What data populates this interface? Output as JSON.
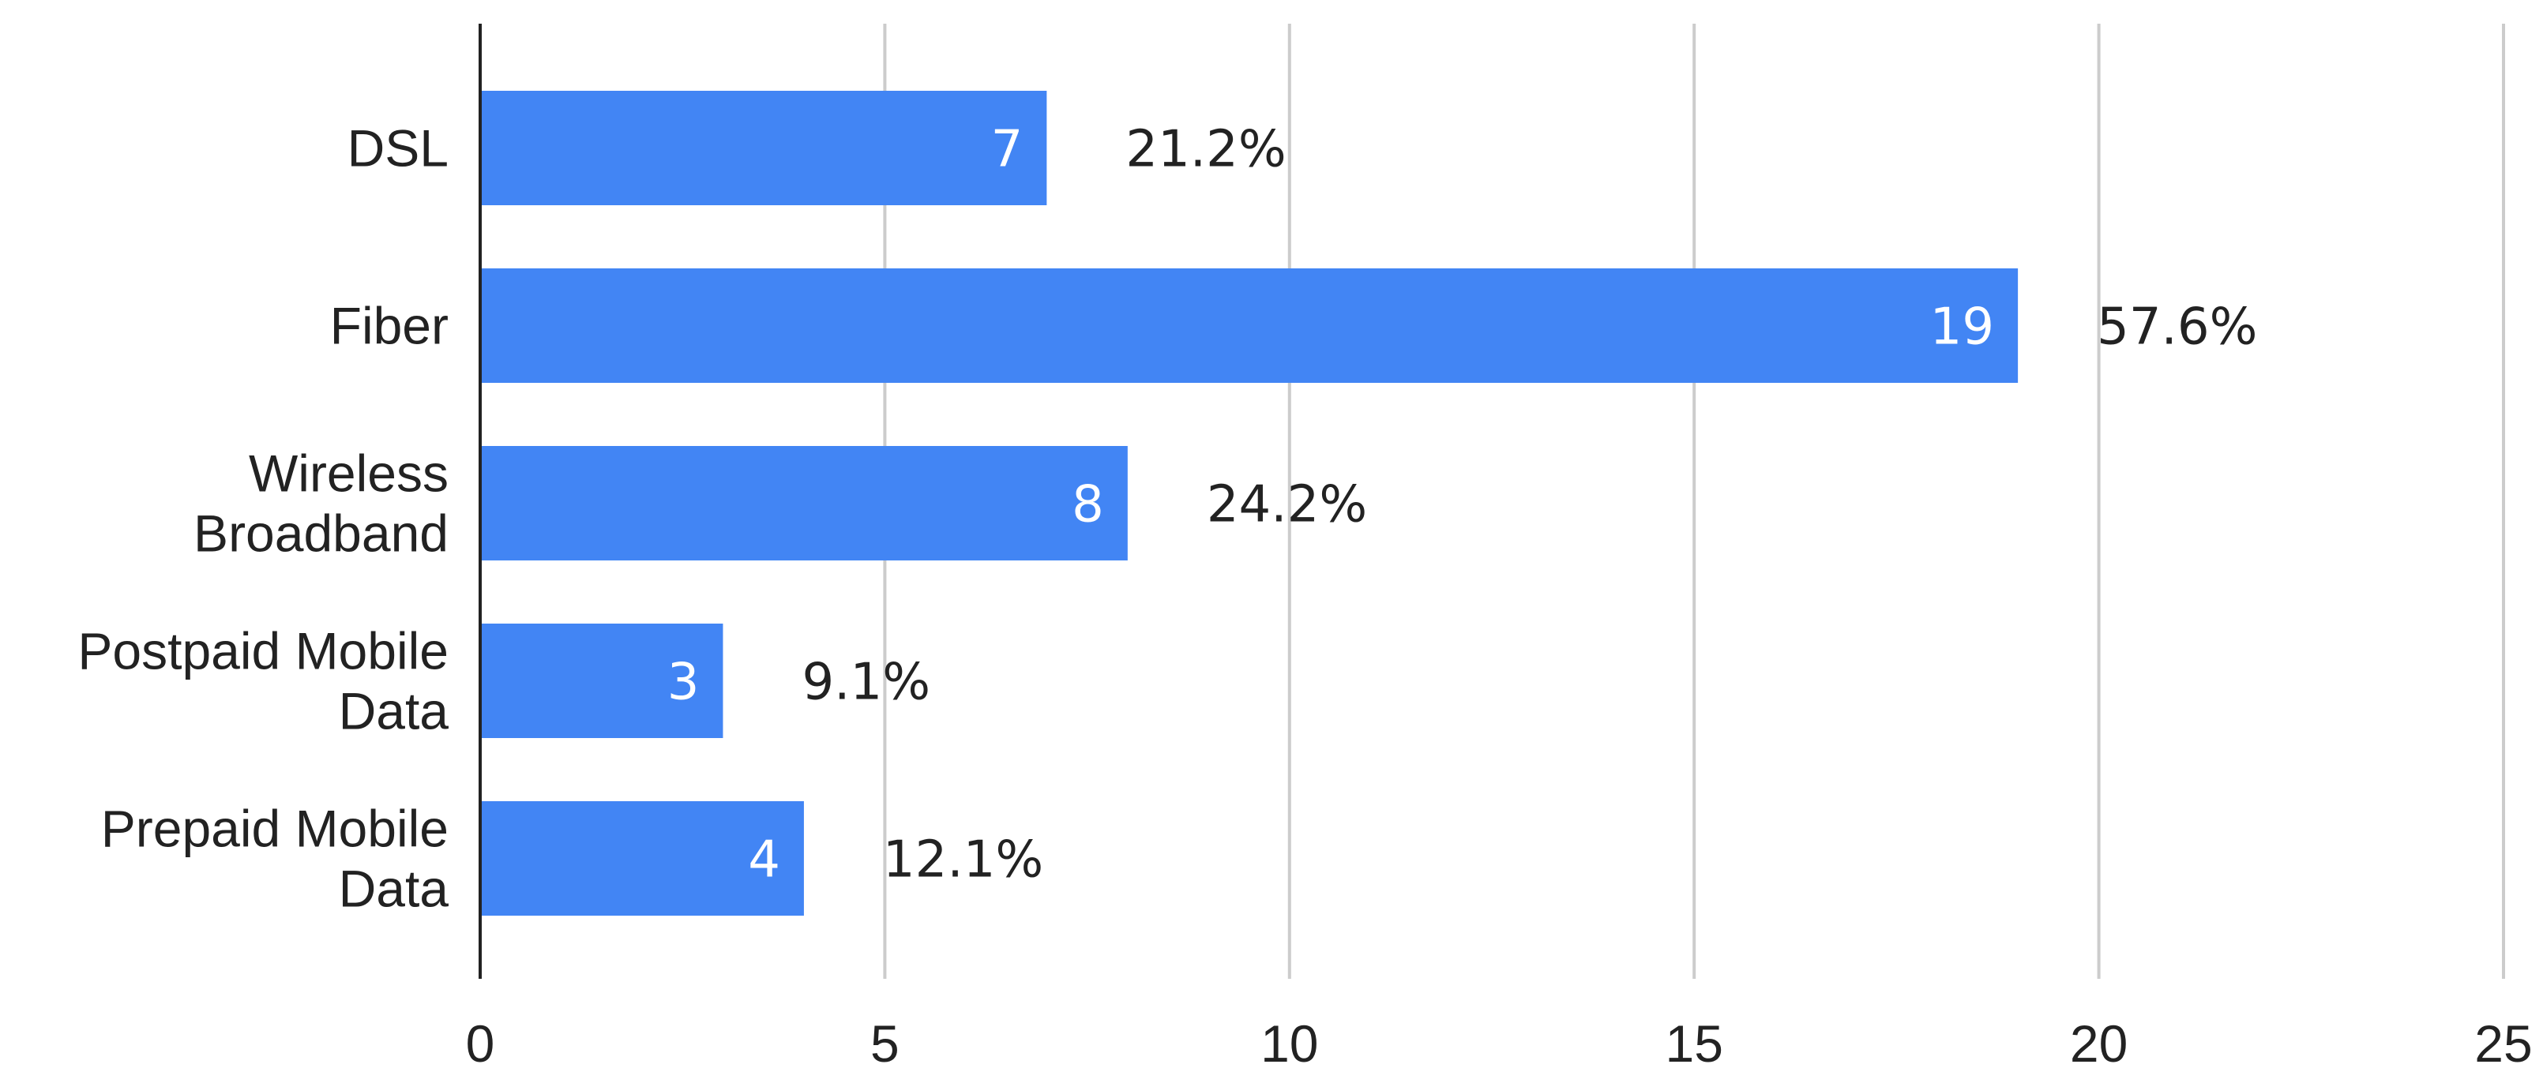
{
  "chart_data": {
    "type": "bar",
    "orientation": "horizontal",
    "categories": [
      "DSL",
      "Fiber",
      "Wireless Broadband",
      "Postpaid Mobile Data",
      "Prepaid Mobile Data"
    ],
    "category_lines": [
      [
        "DSL"
      ],
      [
        "Fiber"
      ],
      [
        "Wireless",
        "Broadband"
      ],
      [
        "Postpaid Mobile",
        "Data"
      ],
      [
        "Prepaid Mobile",
        "Data"
      ]
    ],
    "values": [
      7,
      19,
      8,
      3,
      4
    ],
    "percent_labels": [
      "21.2%",
      "57.6%",
      "24.2%",
      "9.1%",
      "12.1%"
    ],
    "xlim": [
      0,
      25
    ],
    "xticks": [
      0,
      5,
      10,
      15,
      20,
      25
    ],
    "grid": true,
    "title": "",
    "xlabel": "",
    "ylabel": "",
    "colors": {
      "bar": "#4285F4",
      "grid": "#CCCCCC",
      "axis": "#222222",
      "text": "#222222",
      "value_text": "#FFFFFF"
    }
  }
}
